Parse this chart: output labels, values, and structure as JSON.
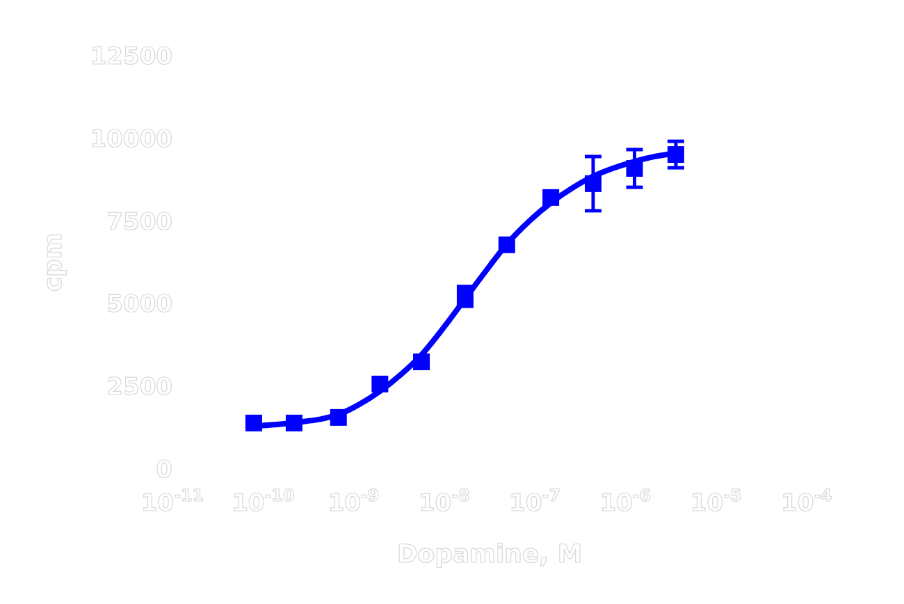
{
  "chart_data": {
    "type": "scatter",
    "xlabel": "Dopamine, M",
    "ylabel": "cpm",
    "log": "x",
    "xlim": [
      1e-11,
      0.0001
    ],
    "ylim": [
      0,
      12500
    ],
    "xticks": [
      {
        "value": 1e-11,
        "label": "10$^{-11}$"
      },
      {
        "value": 1e-10,
        "label": "10$^{-10}$"
      },
      {
        "value": 1e-09,
        "label": "10$^{-9}$"
      },
      {
        "value": 1e-08,
        "label": "10$^{-8}$"
      },
      {
        "value": 1e-07,
        "label": "10$^{-7}$"
      },
      {
        "value": 1e-06,
        "label": "10$^{-6}$"
      },
      {
        "value": 1e-05,
        "label": "10$^{-5}$"
      },
      {
        "value": 0.0001,
        "label": "10$^{-4}$"
      }
    ],
    "yticks": [
      0,
      2500,
      5000,
      7500,
      10000,
      12500
    ],
    "grid": false,
    "series": [
      {
        "type": "line",
        "color": "#0000ff",
        "marker": "none",
        "line_style": "solid",
        "x": [
          7.9e-11,
          2.2e-10,
          6.8e-10,
          1.15e-09,
          1.95e-09,
          3.3e-09,
          5.6e-09,
          1e-08,
          1.7e-08,
          2.9e-08,
          4.9e-08,
          8.7e-08,
          1.5e-07,
          2.6e-07,
          4.4e-07,
          7.4e-07,
          1.26e-06,
          2.1e-06,
          3.6e-06
        ],
        "values": [
          1300,
          1400,
          1650,
          1950,
          2350,
          2850,
          3450,
          4300,
          5150,
          6000,
          6800,
          7500,
          8050,
          8500,
          8850,
          9100,
          9300,
          9450,
          9550
        ]
      },
      {
        "color": "#0000ff",
        "marker": "square",
        "x": [
          7.9e-11,
          2.2e-10,
          6.8e-10,
          1.95e-09,
          5.6e-09,
          1.7e-08,
          4.9e-08,
          1.5e-07,
          4.4e-07,
          1.26e-06,
          3.6e-06
        ],
        "values": [
          1390,
          1390,
          1560,
          2570,
          3240,
          5220,
          6780,
          8210,
          8630,
          9090,
          9510
        ],
        "errors": [
          null,
          null,
          null,
          null,
          null,
          300,
          null,
          null,
          820,
          570,
          400
        ]
      }
    ]
  }
}
